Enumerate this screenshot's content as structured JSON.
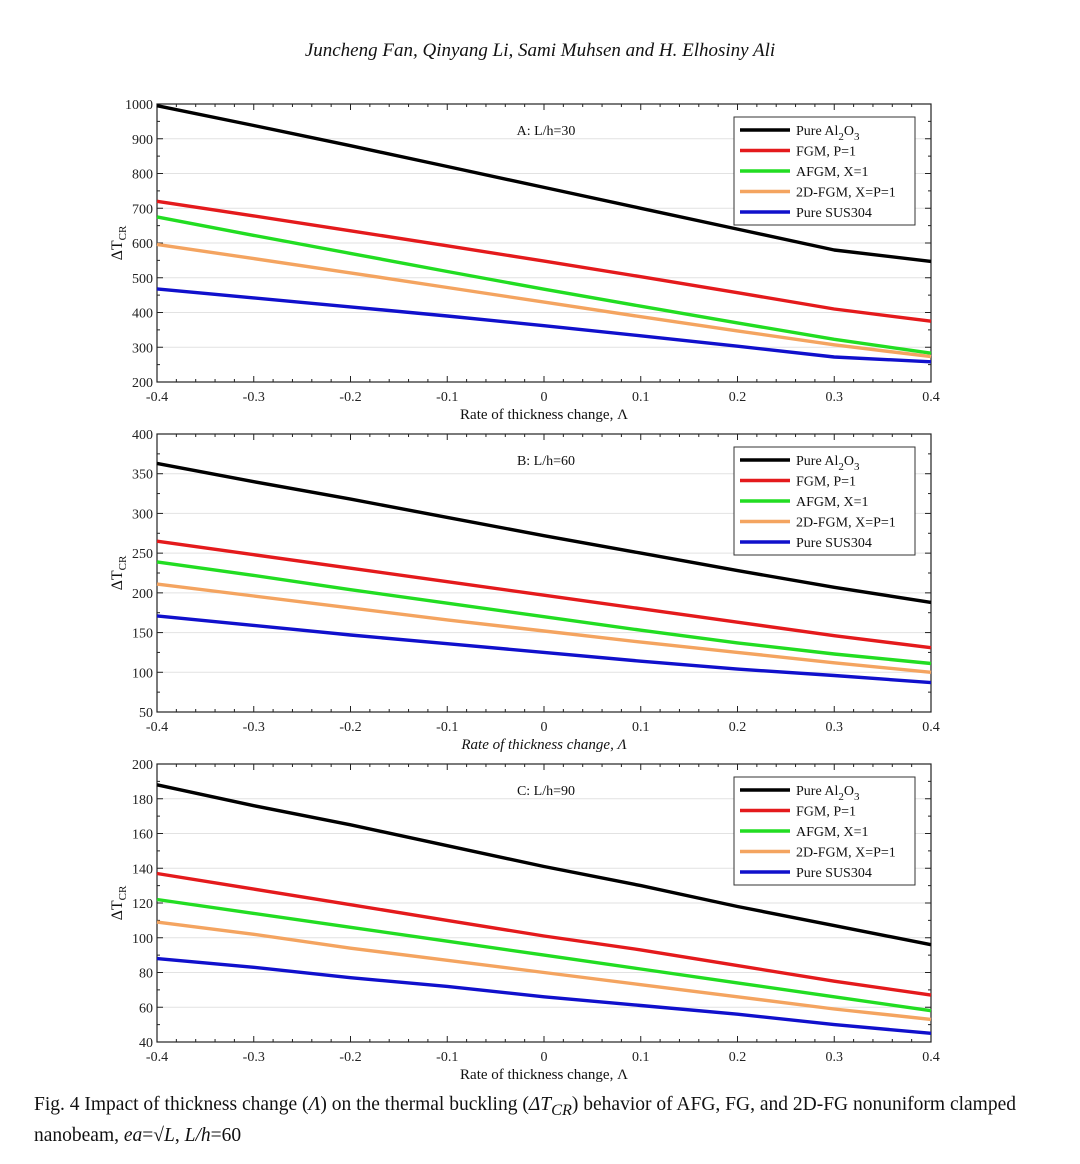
{
  "header": {
    "authors": "Juncheng Fan, Qinyang Li, Sami Muhsen and H. Elhosiny Ali"
  },
  "caption": {
    "fig": "Fig. 4",
    "p1": "Impact of thickness change (",
    "lambda": "Λ",
    "p2": ") on the thermal buckling (",
    "dt": "ΔT",
    "dt_sub": "CR",
    "p3": ") behavior of AFG, FG, and 2D-FG nonuniform clamped nanobeam, ",
    "ea": "ea",
    "eq": "=√",
    "L": "L",
    "sep": ", ",
    "Lh": "L/h",
    "val": "=60"
  },
  "colors": {
    "al2o3": "#000000",
    "fgm": "#e41a1c",
    "afgm": "#22dd22",
    "fg2d": "#f4a460",
    "sus": "#1010cc"
  },
  "chart_data": [
    {
      "type": "line",
      "title": "A: L/h=30",
      "xlabel": "Rate of thickness change, Λ",
      "ylabel": "ΔT",
      "ylabel_sub": "CR",
      "x": [
        -0.4,
        -0.3,
        -0.2,
        -0.1,
        0,
        0.1,
        0.2,
        0.3,
        0.4
      ],
      "xlim": [
        -0.4,
        0.4
      ],
      "ylim": [
        200,
        1000
      ],
      "yticks": [
        200,
        300,
        400,
        500,
        600,
        700,
        800,
        900,
        1000
      ],
      "legend_position": "top-right",
      "series": [
        {
          "name": "Pure Al2O3",
          "name_main": "Pure Al",
          "name_sub1": "2",
          "name_mid": "O",
          "name_sub2": "3",
          "color_key": "al2o3",
          "values": [
            995,
            938,
            880,
            820,
            760,
            700,
            640,
            580,
            547
          ]
        },
        {
          "name": "FGM, P=1",
          "color_key": "fgm",
          "values": [
            720,
            678,
            635,
            592,
            548,
            503,
            457,
            410,
            375
          ]
        },
        {
          "name": "AFGM, X=1",
          "color_key": "afgm",
          "values": [
            675,
            622,
            570,
            518,
            467,
            418,
            370,
            323,
            283
          ]
        },
        {
          "name": "2D-FGM, X=P=1",
          "color_key": "fg2d",
          "values": [
            596,
            555,
            514,
            472,
            430,
            388,
            347,
            307,
            273
          ]
        },
        {
          "name": "Pure SUS304",
          "color_key": "sus",
          "values": [
            468,
            442,
            416,
            390,
            362,
            333,
            303,
            272,
            258
          ]
        }
      ]
    },
    {
      "type": "line",
      "title": "B: L/h=60",
      "xlabel": "Rate of thickness change, Λ",
      "ylabel": "ΔT",
      "ylabel_sub": "CR",
      "x": [
        -0.4,
        -0.3,
        -0.2,
        -0.1,
        0,
        0.1,
        0.2,
        0.3,
        0.4
      ],
      "xlim": [
        -0.4,
        0.4
      ],
      "ylim": [
        50,
        400
      ],
      "yticks": [
        50,
        100,
        150,
        200,
        250,
        300,
        350,
        400
      ],
      "legend_position": "top-right",
      "series": [
        {
          "name": "Pure Al2O3",
          "name_main": "Pure Al",
          "name_sub1": "2",
          "name_mid": "O",
          "name_sub2": "3",
          "color_key": "al2o3",
          "values": [
            363,
            340,
            318,
            295,
            272,
            250,
            228,
            207,
            188
          ]
        },
        {
          "name": "FGM, P=1",
          "color_key": "fgm",
          "values": [
            265,
            248,
            231,
            214,
            197,
            180,
            163,
            146,
            131
          ]
        },
        {
          "name": "AFGM, X=1",
          "color_key": "afgm",
          "values": [
            239,
            222,
            204,
            187,
            170,
            153,
            137,
            123,
            111
          ]
        },
        {
          "name": "2D-FGM, X=P=1",
          "color_key": "fg2d",
          "values": [
            211,
            196,
            181,
            166,
            152,
            138,
            125,
            112,
            100
          ]
        },
        {
          "name": "Pure SUS304",
          "color_key": "sus",
          "values": [
            171,
            159,
            147,
            136,
            125,
            114,
            104,
            96,
            87
          ]
        }
      ]
    },
    {
      "type": "line",
      "title": "C: L/h=90",
      "xlabel": "Rate of thickness change, Λ",
      "ylabel": "ΔT",
      "ylabel_sub": "CR",
      "x": [
        -0.4,
        -0.3,
        -0.2,
        -0.1,
        0,
        0.1,
        0.2,
        0.3,
        0.4
      ],
      "xlim": [
        -0.4,
        0.4
      ],
      "ylim": [
        40,
        200
      ],
      "yticks": [
        40,
        60,
        80,
        100,
        120,
        140,
        160,
        180,
        200
      ],
      "legend_position": "top-right",
      "series": [
        {
          "name": "Pure Al2O3",
          "name_main": "Pure Al",
          "name_sub1": "2",
          "name_mid": "O",
          "name_sub2": "3",
          "color_key": "al2o3",
          "values": [
            188,
            176,
            165,
            153,
            141,
            130,
            118,
            107,
            96
          ]
        },
        {
          "name": "FGM, P=1",
          "color_key": "fgm",
          "values": [
            137,
            128,
            119,
            110,
            101,
            93,
            84,
            75,
            67
          ]
        },
        {
          "name": "AFGM, X=1",
          "color_key": "afgm",
          "values": [
            122,
            114,
            106,
            98,
            90,
            82,
            74,
            66,
            58
          ]
        },
        {
          "name": "2D-FGM, X=P=1",
          "color_key": "fg2d",
          "values": [
            109,
            102,
            94,
            87,
            80,
            73,
            66,
            59,
            53
          ]
        },
        {
          "name": "Pure SUS304",
          "color_key": "sus",
          "values": [
            88,
            83,
            77,
            72,
            66,
            61,
            56,
            50,
            45
          ]
        }
      ]
    }
  ]
}
